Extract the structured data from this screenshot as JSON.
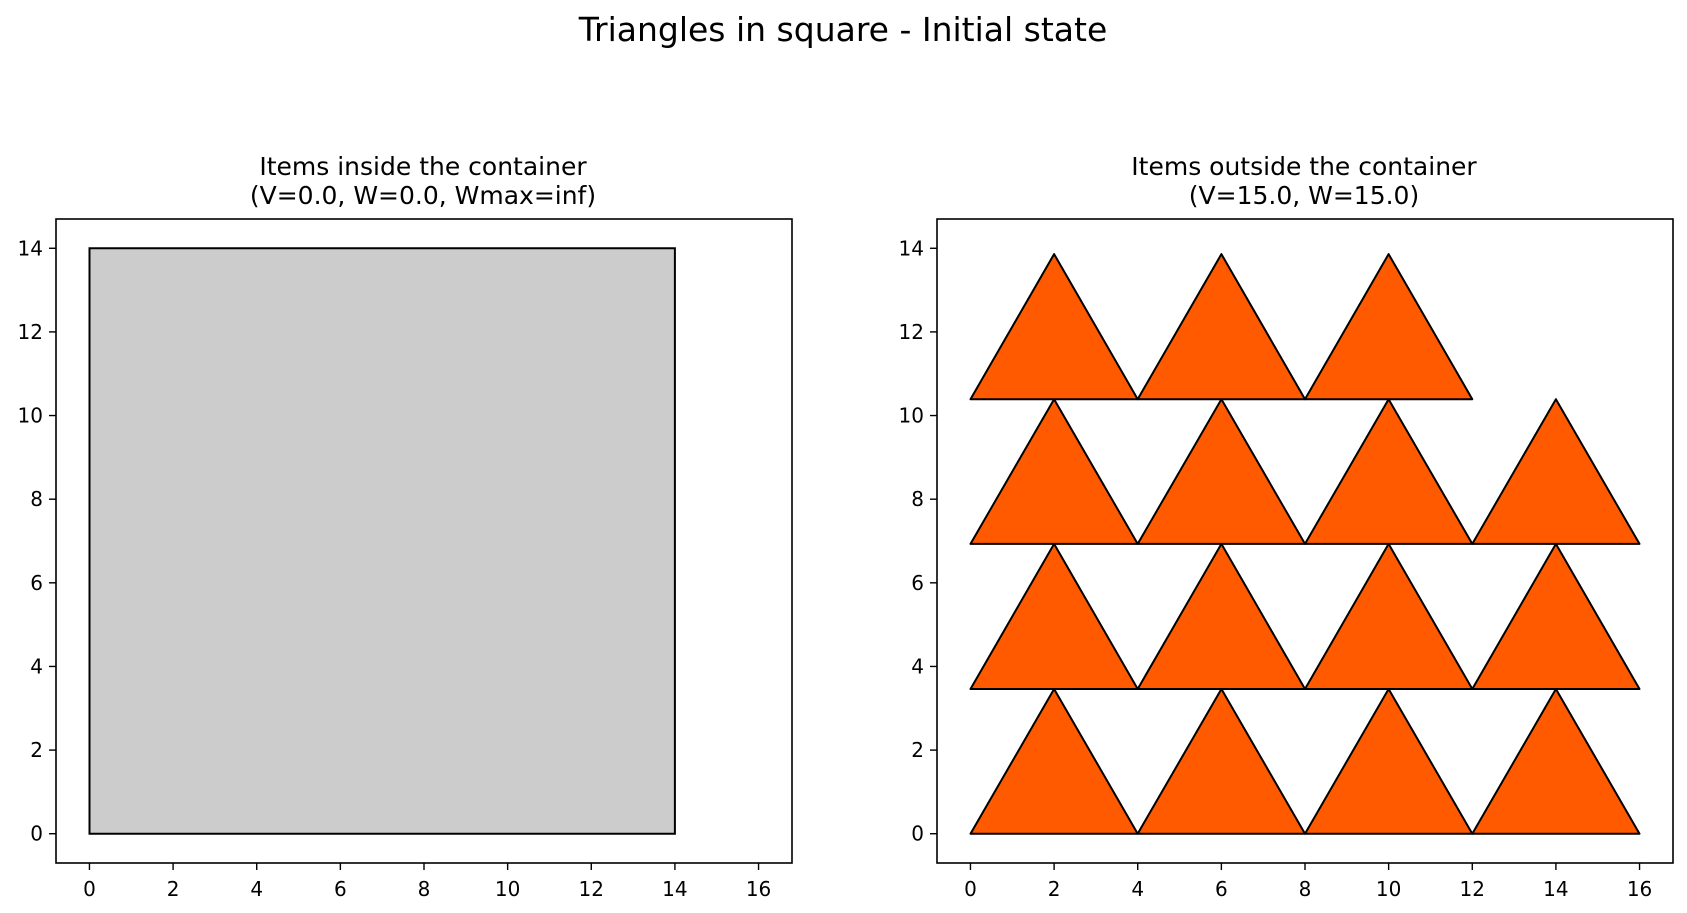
{
  "figure": {
    "suptitle": "Triangles in square - Initial state"
  },
  "chart_data": [
    {
      "type": "polygon-plot",
      "title_line1": "Items inside the container",
      "title_line2": "(V=0.0, W=0.0, Wmax=inf)",
      "xticks": [
        "0",
        "2",
        "4",
        "6",
        "8",
        "10",
        "12",
        "14",
        "16"
      ],
      "yticks": [
        "0",
        "2",
        "4",
        "6",
        "8",
        "10",
        "12",
        "14"
      ],
      "xlim": [
        -0.8,
        16.8
      ],
      "ylim": [
        -0.7,
        14.7
      ],
      "grid": false,
      "container": {
        "points": [
          [
            0,
            0
          ],
          [
            14,
            0
          ],
          [
            14,
            14
          ],
          [
            0,
            14
          ]
        ],
        "fill": "#cccccc",
        "stroke": "#000000"
      },
      "items": []
    },
    {
      "type": "polygon-plot",
      "title_line1": "Items outside the container",
      "title_line2": "(V=15.0, W=15.0)",
      "xticks": [
        "0",
        "2",
        "4",
        "6",
        "8",
        "10",
        "12",
        "14",
        "16"
      ],
      "yticks": [
        "0",
        "2",
        "4",
        "6",
        "8",
        "10",
        "12",
        "14"
      ],
      "xlim": [
        -0.8,
        16.8
      ],
      "ylim": [
        -0.7,
        14.7
      ],
      "grid": false,
      "item_fill": "#ff5a00",
      "item_stroke": "#000000",
      "items": [
        [
          [
            0,
            0
          ],
          [
            4,
            0
          ],
          [
            2,
            3.46
          ]
        ],
        [
          [
            4,
            0
          ],
          [
            8,
            0
          ],
          [
            6,
            3.46
          ]
        ],
        [
          [
            8,
            0
          ],
          [
            12,
            0
          ],
          [
            10,
            3.46
          ]
        ],
        [
          [
            12,
            0
          ],
          [
            16,
            0
          ],
          [
            14,
            3.46
          ]
        ],
        [
          [
            0,
            3.46
          ],
          [
            4,
            3.46
          ],
          [
            2,
            6.93
          ]
        ],
        [
          [
            4,
            3.46
          ],
          [
            8,
            3.46
          ],
          [
            6,
            6.93
          ]
        ],
        [
          [
            8,
            3.46
          ],
          [
            12,
            3.46
          ],
          [
            10,
            6.93
          ]
        ],
        [
          [
            12,
            3.46
          ],
          [
            16,
            3.46
          ],
          [
            14,
            6.93
          ]
        ],
        [
          [
            0,
            6.93
          ],
          [
            4,
            6.93
          ],
          [
            2,
            10.39
          ]
        ],
        [
          [
            4,
            6.93
          ],
          [
            8,
            6.93
          ],
          [
            6,
            10.39
          ]
        ],
        [
          [
            8,
            6.93
          ],
          [
            12,
            6.93
          ],
          [
            10,
            10.39
          ]
        ],
        [
          [
            12,
            6.93
          ],
          [
            16,
            6.93
          ],
          [
            14,
            10.39
          ]
        ],
        [
          [
            0,
            10.39
          ],
          [
            4,
            10.39
          ],
          [
            2,
            13.86
          ]
        ],
        [
          [
            4,
            10.39
          ],
          [
            8,
            10.39
          ],
          [
            6,
            13.86
          ]
        ],
        [
          [
            8,
            10.39
          ],
          [
            12,
            10.39
          ],
          [
            10,
            13.86
          ]
        ]
      ]
    }
  ]
}
